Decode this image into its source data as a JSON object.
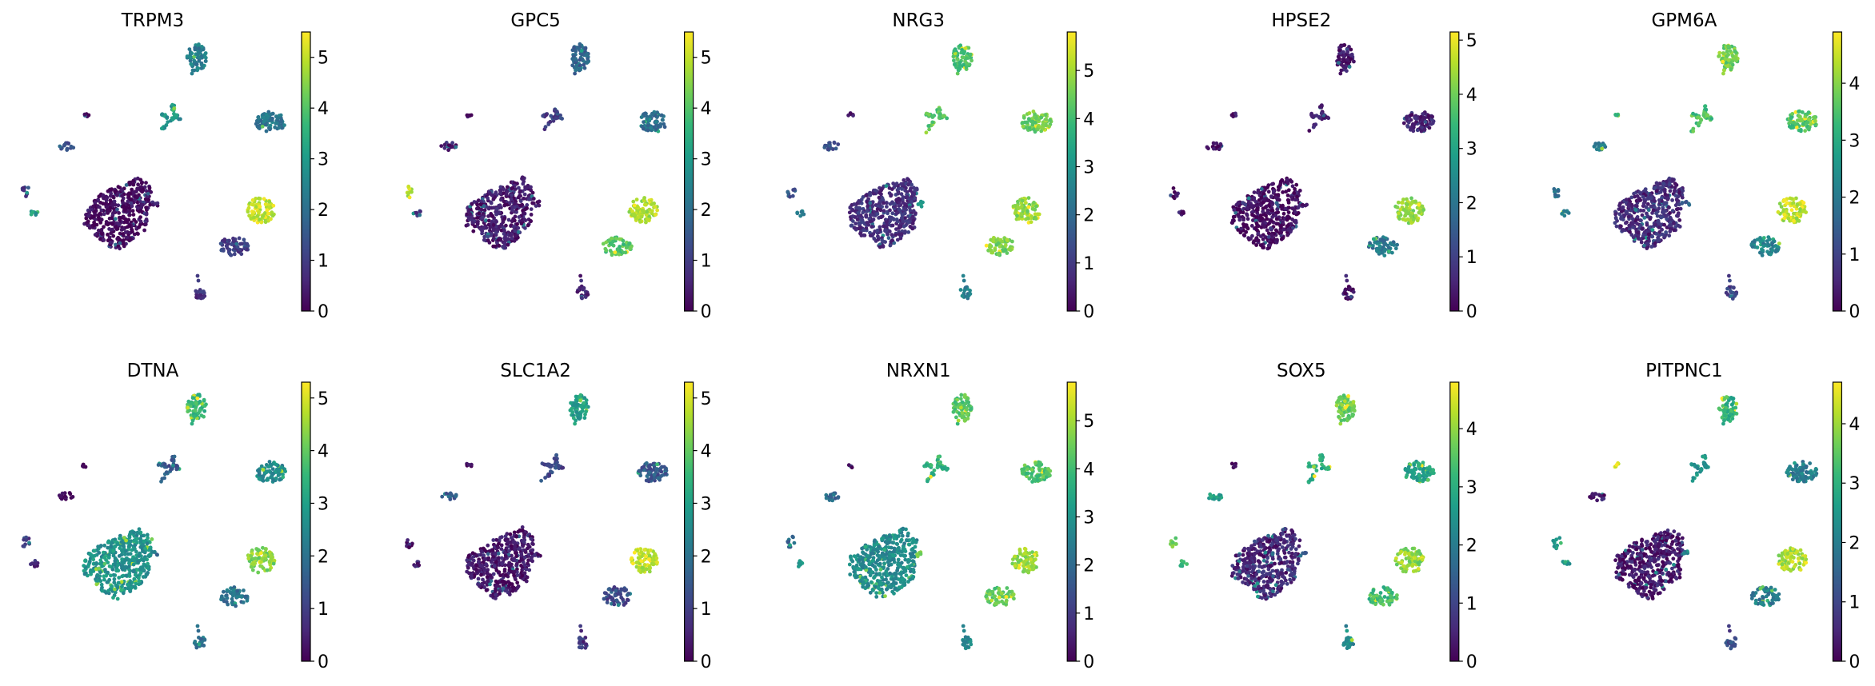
{
  "chart_data": {
    "type": "scatter",
    "description_kind": "umap-feature-plots",
    "colormap": "viridis",
    "colormap_stops": [
      "#440154",
      "#482878",
      "#3e4989",
      "#31688e",
      "#26828e",
      "#1f9e89",
      "#35b779",
      "#6ece58",
      "#b5de2b",
      "#fde725"
    ],
    "clusters": [
      "main",
      "main_side",
      "top",
      "branch",
      "right_top",
      "right_mid",
      "lower",
      "bottom",
      "left_tiny",
      "left_small",
      "far_left_a",
      "far_left_b"
    ],
    "panels": [
      {
        "title": "TRPM3",
        "vmax": 5.5,
        "ticks": [
          "0",
          "1",
          "2",
          "3",
          "4",
          "5"
        ],
        "cluster_values": [
          0.1,
          0.5,
          2.3,
          2.8,
          2.2,
          5.0,
          1.0,
          0.8,
          0.0,
          1.5,
          1.0,
          3.0
        ]
      },
      {
        "title": "GPC5",
        "vmax": 5.5,
        "ticks": [
          "0",
          "1",
          "2",
          "3",
          "4",
          "5"
        ],
        "cluster_values": [
          0.4,
          0.5,
          1.8,
          1.0,
          2.0,
          4.8,
          4.0,
          0.5,
          0.2,
          0.5,
          5.0,
          1.0
        ]
      },
      {
        "title": "NRG3",
        "vmax": 5.8,
        "ticks": [
          "0",
          "1",
          "2",
          "3",
          "4",
          "5"
        ],
        "cluster_values": [
          0.8,
          3.0,
          4.0,
          4.2,
          4.5,
          4.8,
          4.6,
          2.5,
          0.3,
          1.5,
          1.5,
          2.5
        ]
      },
      {
        "title": "HPSE2",
        "vmax": 5.15,
        "ticks": [
          "0",
          "1",
          "2",
          "3",
          "4",
          "5"
        ],
        "cluster_values": [
          0.1,
          0.3,
          0.3,
          0.5,
          0.5,
          4.3,
          2.0,
          0.3,
          0.2,
          0.2,
          0.2,
          0.3
        ]
      },
      {
        "title": "GPM6A",
        "vmax": 4.9,
        "ticks": [
          "0",
          "1",
          "2",
          "3",
          "4"
        ],
        "cluster_values": [
          0.6,
          1.5,
          3.8,
          3.5,
          3.6,
          4.4,
          2.2,
          1.0,
          3.0,
          2.0,
          2.0,
          2.2
        ]
      },
      {
        "title": "DTNA",
        "vmax": 5.3,
        "ticks": [
          "0",
          "1",
          "2",
          "3",
          "4",
          "5"
        ],
        "cluster_values": [
          2.7,
          2.0,
          3.5,
          1.5,
          2.5,
          4.3,
          2.0,
          2.0,
          0.2,
          0.3,
          1.0,
          0.5
        ]
      },
      {
        "title": "SLC1A2",
        "vmax": 5.3,
        "ticks": [
          "0",
          "1",
          "2",
          "3",
          "4",
          "5"
        ],
        "cluster_values": [
          0.3,
          0.5,
          3.0,
          1.2,
          1.5,
          4.8,
          1.2,
          0.8,
          0.1,
          1.5,
          0.2,
          0.5
        ]
      },
      {
        "title": "NRXN1",
        "vmax": 5.8,
        "ticks": [
          "0",
          "1",
          "2",
          "3",
          "4",
          "5"
        ],
        "cluster_values": [
          2.8,
          4.5,
          4.3,
          3.8,
          4.2,
          4.9,
          4.4,
          2.8,
          0.3,
          2.0,
          2.0,
          2.8
        ]
      },
      {
        "title": "SOX5",
        "vmax": 4.8,
        "ticks": [
          "0",
          "1",
          "2",
          "3",
          "4"
        ],
        "cluster_values": [
          0.5,
          1.5,
          3.8,
          3.0,
          2.8,
          4.0,
          3.3,
          2.3,
          0.2,
          2.8,
          3.8,
          3.2
        ]
      },
      {
        "title": "PITPNC1",
        "vmax": 4.7,
        "ticks": [
          "0",
          "1",
          "2",
          "3",
          "4"
        ],
        "cluster_values": [
          0.3,
          2.0,
          3.0,
          2.4,
          2.0,
          4.1,
          2.0,
          1.0,
          4.3,
          0.3,
          2.6,
          2.6
        ]
      }
    ]
  }
}
